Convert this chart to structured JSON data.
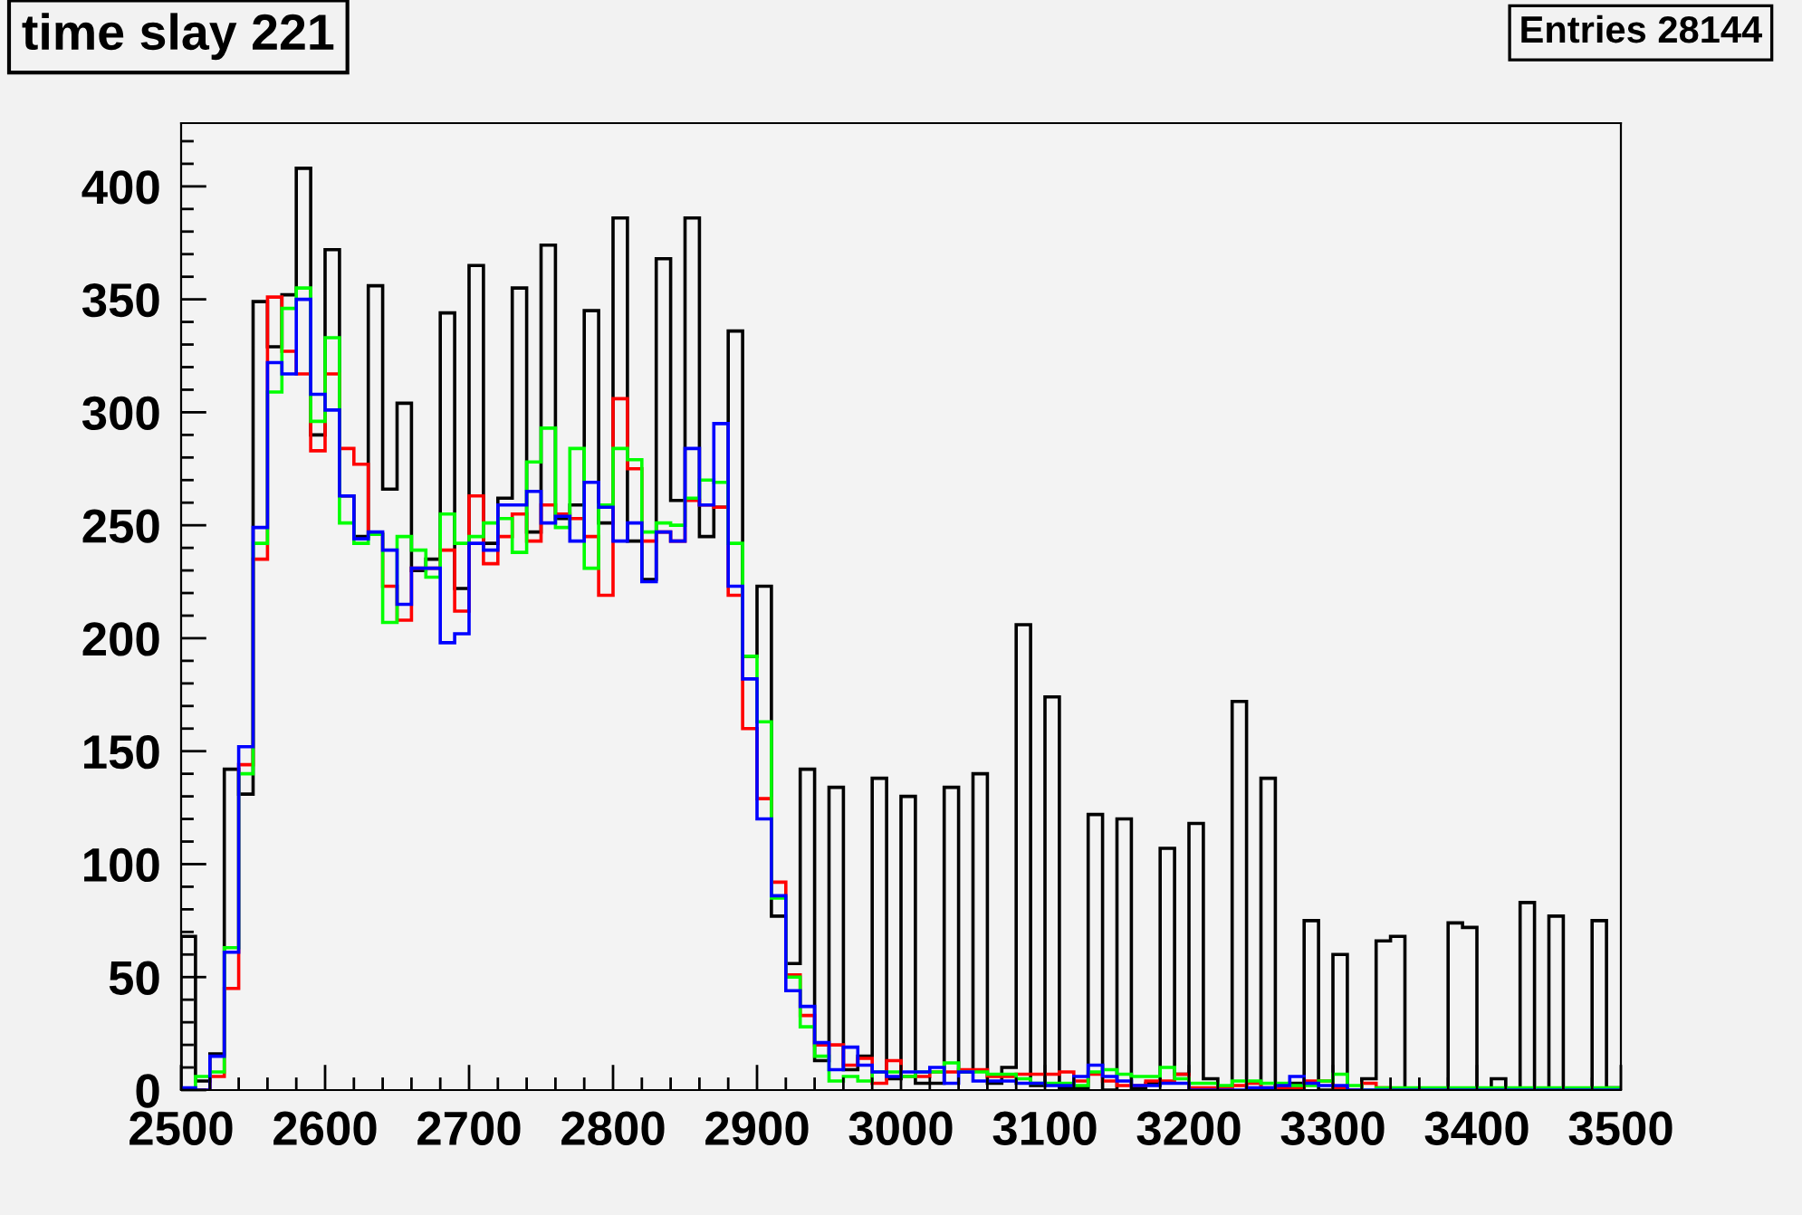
{
  "chart_data": {
    "type": "histogram",
    "title": "time slay 221",
    "annotations": [
      "Entries 28144"
    ],
    "bins": [
      2500,
      2510,
      2520,
      2530,
      2540,
      2550,
      2560,
      2570,
      2580,
      2590,
      2600,
      2610,
      2620,
      2630,
      2640,
      2650,
      2660,
      2670,
      2680,
      2690,
      2700,
      2710,
      2720,
      2730,
      2740,
      2750,
      2760,
      2770,
      2780,
      2790,
      2800,
      2810,
      2820,
      2830,
      2840,
      2850,
      2860,
      2870,
      2880,
      2890,
      2900,
      2910,
      2920,
      2930,
      2940,
      2950,
      2960,
      2970,
      2980,
      2990,
      3000,
      3010,
      3020,
      3030,
      3040,
      3050,
      3060,
      3070,
      3080,
      3090,
      3100,
      3110,
      3120,
      3130,
      3140,
      3150,
      3160,
      3170,
      3180,
      3190,
      3200,
      3210,
      3220,
      3230,
      3240,
      3250,
      3260,
      3270,
      3280,
      3290,
      3300,
      3310,
      3320,
      3330,
      3340,
      3350,
      3360,
      3370,
      3380,
      3390,
      3400,
      3410,
      3420,
      3430,
      3440,
      3450,
      3460,
      3470,
      3480,
      3490,
      3500
    ],
    "series": [
      {
        "color": "#000000",
        "values": [
          68,
          4,
          16,
          142,
          131,
          349,
          329,
          352,
          408,
          290,
          372,
          263,
          245,
          356,
          266,
          304,
          230,
          235,
          344,
          222,
          365,
          242,
          262,
          355,
          247,
          374,
          253,
          259,
          345,
          251,
          386,
          243,
          226,
          368,
          261,
          386,
          245,
          258,
          336,
          192,
          223,
          77,
          56,
          142,
          13,
          134,
          9,
          15,
          138,
          5,
          130,
          3,
          3,
          134,
          8,
          140,
          3,
          10,
          206,
          2,
          174,
          1,
          1,
          122,
          0,
          120,
          1,
          3,
          107,
          7,
          118,
          5,
          0,
          172,
          0,
          138,
          1,
          3,
          75,
          0,
          60,
          0,
          5,
          66,
          68,
          0,
          0,
          0,
          74,
          72,
          0,
          5,
          0,
          83,
          0,
          77,
          0,
          0,
          75,
          1
        ]
      },
      {
        "color": "#ff0000",
        "values": [
          0,
          0,
          6,
          45,
          144,
          235,
          351,
          327,
          317,
          283,
          317,
          284,
          277,
          246,
          223,
          208,
          231,
          231,
          239,
          212,
          263,
          233,
          245,
          255,
          243,
          259,
          255,
          253,
          245,
          219,
          306,
          275,
          243,
          247,
          243,
          261,
          259,
          258,
          219,
          160,
          129,
          92,
          51,
          33,
          20,
          20,
          11,
          14,
          3,
          13,
          6,
          6,
          8,
          8,
          9,
          9,
          6,
          6,
          7,
          7,
          7,
          8,
          4,
          7,
          4,
          2,
          2,
          4,
          4,
          7,
          1,
          1,
          1,
          2,
          3,
          1,
          1,
          1,
          4,
          4,
          1,
          0,
          3,
          1,
          0,
          0,
          0,
          0,
          0,
          0,
          0,
          0,
          0,
          0,
          0,
          0,
          0,
          0,
          0,
          0
        ]
      },
      {
        "color": "#00ff00",
        "values": [
          0,
          6,
          8,
          63,
          140,
          242,
          309,
          346,
          355,
          296,
          333,
          251,
          242,
          246,
          207,
          245,
          239,
          227,
          255,
          242,
          245,
          251,
          253,
          238,
          278,
          293,
          249,
          284,
          231,
          259,
          284,
          279,
          247,
          251,
          250,
          262,
          270,
          269,
          242,
          192,
          163,
          85,
          50,
          28,
          15,
          4,
          6,
          4,
          8,
          8,
          6,
          8,
          8,
          12,
          8,
          8,
          7,
          7,
          5,
          3,
          3,
          3,
          2,
          8,
          9,
          7,
          6,
          6,
          10,
          5,
          3,
          3,
          2,
          4,
          4,
          3,
          3,
          2,
          2,
          4,
          7,
          2,
          0,
          1,
          1,
          1,
          1,
          1,
          1,
          1,
          1,
          1,
          1,
          1,
          1,
          1,
          1,
          1,
          1,
          1
        ]
      },
      {
        "color": "#0000ff",
        "values": [
          1,
          0,
          15,
          61,
          152,
          249,
          322,
          317,
          350,
          308,
          301,
          263,
          244,
          247,
          239,
          215,
          231,
          231,
          198,
          202,
          242,
          239,
          259,
          259,
          265,
          251,
          254,
          243,
          269,
          258,
          243,
          251,
          225,
          247,
          243,
          284,
          259,
          295,
          223,
          182,
          120,
          86,
          44,
          37,
          21,
          9,
          19,
          11,
          8,
          6,
          8,
          8,
          10,
          3,
          8,
          4,
          4,
          4,
          3,
          3,
          2,
          2,
          6,
          11,
          6,
          4,
          2,
          2,
          3,
          3,
          0,
          0,
          0,
          0,
          1,
          1,
          2,
          6,
          3,
          2,
          2,
          0,
          0,
          0,
          0,
          0,
          0,
          0,
          0,
          0,
          0,
          0,
          0,
          0,
          0,
          0,
          0,
          0,
          0,
          0
        ]
      }
    ],
    "xlim": [
      2500,
      3500
    ],
    "xticks": [
      2500,
      2600,
      2700,
      2800,
      2900,
      3000,
      3100,
      3200,
      3300,
      3400,
      3500
    ],
    "ylim": [
      0,
      428
    ],
    "yticks": [
      0,
      50,
      100,
      150,
      200,
      250,
      300,
      350,
      400
    ],
    "grid": false
  }
}
